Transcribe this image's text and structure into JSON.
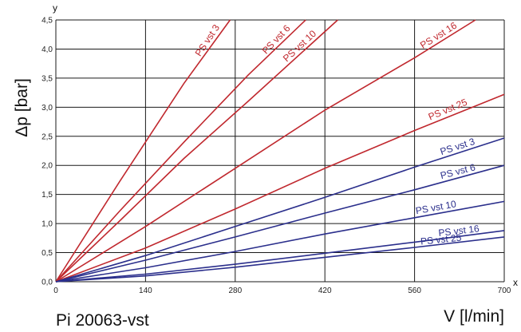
{
  "chart_data": {
    "type": "line",
    "x_axis_letter": "x",
    "y_axis_letter": "y",
    "ylabel": "Δp [bar]",
    "xlabel": "V [l/min]",
    "caption": "Pi 20063-vst",
    "xlim": [
      0,
      700
    ],
    "ylim": [
      0,
      4.5
    ],
    "x_ticks": [
      "0",
      "140",
      "280",
      "420",
      "560",
      "700"
    ],
    "x_tick_values": [
      0,
      140,
      280,
      420,
      560,
      700
    ],
    "y_ticks": [
      "0,0",
      "0,5",
      "1,0",
      "1,5",
      "2,0",
      "2,5",
      "3,0",
      "3,5",
      "4,0",
      "4,5"
    ],
    "y_tick_values": [
      0,
      0.5,
      1.0,
      1.5,
      2.0,
      2.5,
      3.0,
      3.5,
      4.0,
      4.5
    ],
    "grid": true,
    "colors": {
      "red": "#c0282e",
      "blue": "#2b2f8c",
      "grid": "#1a1a1a"
    },
    "series": [
      {
        "name": "PS vst 3",
        "group": "red",
        "x": [
          0,
          100,
          200,
          272
        ],
        "y": [
          0,
          1.73,
          3.41,
          4.5
        ]
      },
      {
        "name": "PS vst 6",
        "group": "red",
        "x": [
          0,
          100,
          200,
          300,
          390
        ],
        "y": [
          0,
          1.22,
          2.4,
          3.55,
          4.5
        ]
      },
      {
        "name": "PS vst 10",
        "group": "red",
        "x": [
          0,
          100,
          200,
          300,
          440
        ],
        "y": [
          0,
          1.05,
          2.12,
          3.1,
          4.5
        ]
      },
      {
        "name": "PS vst 16",
        "group": "red",
        "x": [
          0,
          140,
          280,
          420,
          560,
          655
        ],
        "y": [
          0,
          0.95,
          1.95,
          2.95,
          3.85,
          4.5
        ]
      },
      {
        "name": "PS vst 25",
        "group": "red",
        "x": [
          0,
          140,
          280,
          420,
          560,
          700
        ],
        "y": [
          0,
          0.58,
          1.25,
          1.95,
          2.6,
          3.22
        ]
      },
      {
        "name": "PS vst 3",
        "group": "blue",
        "x": [
          0,
          140,
          280,
          420,
          560,
          700
        ],
        "y": [
          0,
          0.45,
          0.95,
          1.45,
          1.97,
          2.47
        ]
      },
      {
        "name": "PS vst 6",
        "group": "blue",
        "x": [
          0,
          140,
          280,
          420,
          560,
          700
        ],
        "y": [
          0,
          0.37,
          0.77,
          1.18,
          1.58,
          2.0
        ]
      },
      {
        "name": "PS vst 10",
        "group": "blue",
        "x": [
          0,
          140,
          280,
          420,
          560,
          700
        ],
        "y": [
          0,
          0.24,
          0.52,
          0.82,
          1.1,
          1.38
        ]
      },
      {
        "name": "PS vst 16",
        "group": "blue",
        "x": [
          0,
          140,
          280,
          420,
          560,
          700
        ],
        "y": [
          0,
          0.13,
          0.3,
          0.49,
          0.68,
          0.88
        ]
      },
      {
        "name": "PS vst 25",
        "group": "blue",
        "x": [
          0,
          140,
          280,
          420,
          560,
          700
        ],
        "y": [
          0,
          0.1,
          0.25,
          0.42,
          0.59,
          0.77
        ]
      }
    ]
  }
}
